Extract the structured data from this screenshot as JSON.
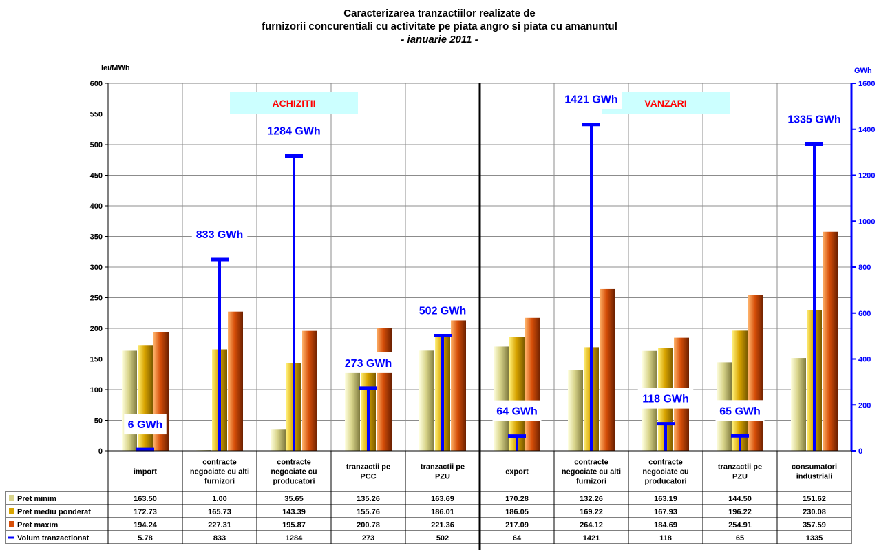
{
  "title": {
    "line1": "Caracterizarea tranzactiilor realizate de",
    "line2": "furnizorii concurentiali cu activitate pe piata angro si piata cu amanuntul",
    "line3": "- ianuarie 2011 -"
  },
  "colors": {
    "min": "#D8D48A",
    "avg": "#D9A400",
    "max": "#D64E08",
    "volume": "#0000FF",
    "section_bg": "#CCFFFF",
    "section_text": "#FF0000"
  },
  "chart_data": {
    "type": "bar",
    "categories": [
      [
        "import"
      ],
      [
        "contracte",
        "negociate cu alti",
        "furnizori"
      ],
      [
        "contracte",
        "negociate cu",
        "producatori"
      ],
      [
        "tranzactii pe",
        "PCC"
      ],
      [
        "tranzactii pe",
        "PZU"
      ],
      [
        "export"
      ],
      [
        "contracte",
        "negociate cu alti",
        "furnizori"
      ],
      [
        "contracte",
        "negociate cu",
        "producatori"
      ],
      [
        "tranzactii pe",
        "PZU"
      ],
      [
        "consumatori",
        "industriali"
      ]
    ],
    "groups": [
      {
        "label": "ACHIZITII",
        "from": 0,
        "to": 4
      },
      {
        "label": "VANZARI",
        "from": 5,
        "to": 9
      }
    ],
    "series": [
      {
        "name": "Pret minim",
        "axis": "left",
        "values": [
          163.5,
          1.0,
          35.65,
          135.26,
          163.69,
          170.28,
          132.26,
          163.19,
          144.5,
          151.62
        ],
        "labels": [
          "163.50",
          "1.00",
          "35.65",
          "135.26",
          "163.69",
          "170.28",
          "132.26",
          "163.19",
          "144.50",
          "151.62"
        ]
      },
      {
        "name": "Pret mediu ponderat",
        "axis": "left",
        "values": [
          172.73,
          165.73,
          143.39,
          155.76,
          186.01,
          186.05,
          169.22,
          167.93,
          196.22,
          230.08
        ],
        "labels": [
          "172.73",
          "165.73",
          "143.39",
          "155.76",
          "186.01",
          "186.05",
          "169.22",
          "167.93",
          "196.22",
          "230.08"
        ]
      },
      {
        "name": "Pret maxim",
        "axis": "left",
        "values": [
          194.24,
          227.31,
          195.87,
          200.78,
          221.36,
          217.09,
          264.12,
          184.69,
          254.91,
          357.59
        ],
        "labels": [
          "194.24",
          "227.31",
          "195.87",
          "200.78",
          "221.36",
          "217.09",
          "264.12",
          "184.69",
          "254.91",
          "357.59"
        ]
      },
      {
        "name": "Volum tranzactionat",
        "axis": "right",
        "values": [
          5.78,
          833,
          1284,
          273,
          502,
          64,
          1421,
          118,
          65,
          1335
        ],
        "labels": [
          "5.78",
          "833",
          "1284",
          "273",
          "502",
          "64",
          "1421",
          "118",
          "65",
          "1335"
        ]
      }
    ],
    "volume_labels": [
      "6 GWh",
      "833 GWh",
      "1284 GWh",
      "273 GWh",
      "502 GWh",
      "64 GWh",
      "1421 GWh",
      "118 GWh",
      "65 GWh",
      "1335 GWh"
    ],
    "ylabel_left": "lei/MWh",
    "ylabel_right": "GWh",
    "ylim_left": [
      0,
      600
    ],
    "ylim_right": [
      0,
      1600
    ],
    "yticks_left": [
      0,
      50,
      100,
      150,
      200,
      250,
      300,
      350,
      400,
      450,
      500,
      550,
      600
    ],
    "yticks_right": [
      0,
      200,
      400,
      600,
      800,
      1000,
      1200,
      1400,
      1600
    ],
    "grid": true,
    "data_table": true
  }
}
